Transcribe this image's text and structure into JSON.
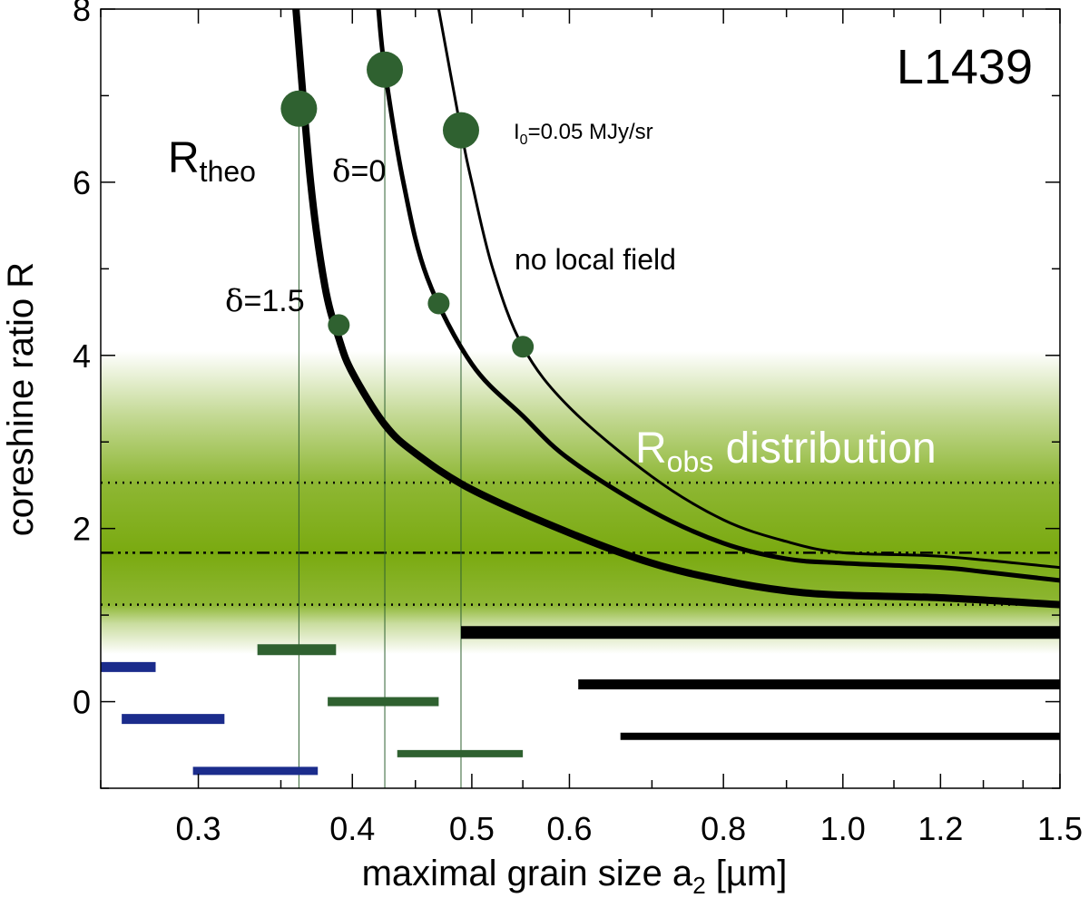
{
  "chart_data": {
    "type": "line",
    "title": "L1439",
    "xlabel": {
      "main": "maximal grain size a",
      "sub": "2",
      "unit": " [µm]"
    },
    "ylabel": "coreshine ratio R",
    "xscale": "log",
    "xlim": [
      0.25,
      1.5
    ],
    "ylim": [
      -1,
      8
    ],
    "x_ticks": [
      {
        "value": 0.3,
        "label": "0.3"
      },
      {
        "value": 0.4,
        "label": "0.4"
      },
      {
        "value": 0.5,
        "label": "0.5"
      },
      {
        "value": 0.6,
        "label": "0.6"
      },
      {
        "value": 0.8,
        "label": "0.8"
      },
      {
        "value": 1.0,
        "label": "1.0"
      },
      {
        "value": 1.2,
        "label": "1.2"
      },
      {
        "value": 1.5,
        "label": "1.5"
      }
    ],
    "y_ticks": [
      {
        "value": 0,
        "label": "0"
      },
      {
        "value": 2,
        "label": "2"
      },
      {
        "value": 4,
        "label": "4"
      },
      {
        "value": 6,
        "label": "6"
      },
      {
        "value": 8,
        "label": "8"
      }
    ],
    "obs_distribution": {
      "label_main": "R",
      "label_sub": "obs",
      "label_rest": " distribution",
      "ymin": 0.55,
      "ymax": 4.05,
      "center": 1.72,
      "lower": 1.12,
      "upper": 2.53,
      "color": "#7aaa10"
    },
    "series": [
      {
        "label_prefix": "δ",
        "label": "=1.5",
        "points": [
          [
            0.36,
            8.0
          ],
          [
            0.37,
            6.0
          ],
          [
            0.38,
            4.8
          ],
          [
            0.39,
            4.2
          ],
          [
            0.4,
            3.8
          ],
          [
            0.425,
            3.2
          ],
          [
            0.45,
            2.87
          ],
          [
            0.5,
            2.45
          ],
          [
            0.6,
            1.95
          ],
          [
            0.7,
            1.6
          ],
          [
            0.8,
            1.4
          ],
          [
            0.9,
            1.28
          ],
          [
            1.0,
            1.23
          ],
          [
            1.2,
            1.2
          ],
          [
            1.5,
            1.12
          ]
        ],
        "width": 8
      },
      {
        "label_prefix": "δ",
        "label": "=0",
        "points": [
          [
            0.42,
            8.0
          ],
          [
            0.425,
            7.3
          ],
          [
            0.44,
            6.0
          ],
          [
            0.46,
            4.9
          ],
          [
            0.5,
            3.9
          ],
          [
            0.55,
            3.3
          ],
          [
            0.6,
            2.8
          ],
          [
            0.7,
            2.2
          ],
          [
            0.8,
            1.83
          ],
          [
            0.9,
            1.65
          ],
          [
            1.0,
            1.6
          ],
          [
            1.2,
            1.55
          ],
          [
            1.3,
            1.5
          ],
          [
            1.5,
            1.4
          ]
        ],
        "width": 5
      },
      {
        "label": "no local field",
        "points": [
          [
            0.47,
            8.0
          ],
          [
            0.49,
            6.6
          ],
          [
            0.5,
            6.0
          ],
          [
            0.52,
            5.0
          ],
          [
            0.55,
            4.1
          ],
          [
            0.6,
            3.4
          ],
          [
            0.7,
            2.6
          ],
          [
            0.8,
            2.1
          ],
          [
            0.9,
            1.85
          ],
          [
            1.0,
            1.72
          ],
          [
            1.2,
            1.68
          ],
          [
            1.5,
            1.55
          ]
        ],
        "width": 3
      }
    ],
    "markers": [
      {
        "x": 0.362,
        "y": 6.85,
        "size": "large",
        "drop": true
      },
      {
        "x": 0.425,
        "y": 7.3,
        "size": "large",
        "drop": true
      },
      {
        "x": 0.49,
        "y": 6.6,
        "size": "large",
        "drop": true
      },
      {
        "x": 0.39,
        "y": 4.35,
        "size": "small",
        "drop": false
      },
      {
        "x": 0.47,
        "y": 4.6,
        "size": "small",
        "drop": false
      },
      {
        "x": 0.55,
        "y": 4.1,
        "size": "small",
        "drop": false
      }
    ],
    "marker_color": "#2f6130",
    "range_bars": [
      {
        "x0": 0.25,
        "x1": 0.277,
        "y": 0.4,
        "color": "#1b2c8c",
        "width": 11
      },
      {
        "x0": 0.26,
        "x1": 0.315,
        "y": -0.2,
        "color": "#1b2c8c",
        "width": 11
      },
      {
        "x0": 0.297,
        "x1": 0.375,
        "y": -0.8,
        "color": "#1b2c8c",
        "width": 9
      },
      {
        "x0": 0.335,
        "x1": 0.388,
        "y": 0.6,
        "color": "#2f6130",
        "width": 12
      },
      {
        "x0": 0.382,
        "x1": 0.47,
        "y": 0.0,
        "color": "#2f6130",
        "width": 10
      },
      {
        "x0": 0.435,
        "x1": 0.55,
        "y": -0.6,
        "color": "#2f6130",
        "width": 8
      },
      {
        "x0": 0.49,
        "x1": 1.5,
        "y": 0.8,
        "color": "#000000",
        "width": 14
      },
      {
        "x0": 0.61,
        "x1": 1.5,
        "y": 0.2,
        "color": "#000000",
        "width": 11
      },
      {
        "x0": 0.66,
        "x1": 1.5,
        "y": -0.4,
        "color": "#000000",
        "width": 8
      }
    ],
    "annotations": {
      "rtheo_main": "R",
      "rtheo_sub": "theo",
      "i0_main": "I",
      "i0_sub": "0",
      "i0_rest": "=0.05 MJy/sr"
    }
  }
}
